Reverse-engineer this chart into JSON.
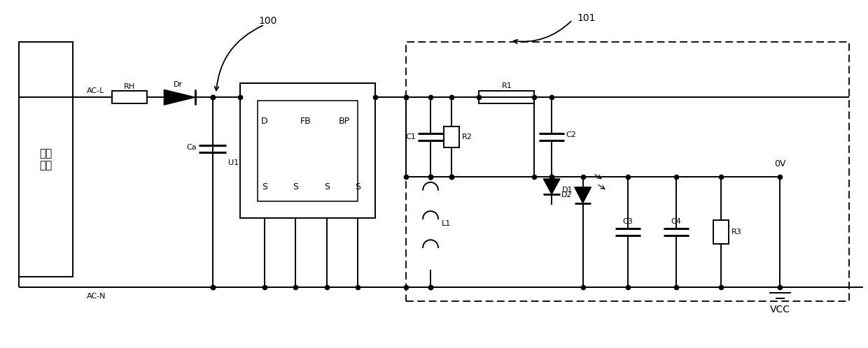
{
  "fig_width": 12.4,
  "fig_height": 4.98,
  "dpi": 100,
  "lc": "#000000",
  "lw": 1.4,
  "ds": 4.5,
  "label_supply": "供电\n系统",
  "label_ACL": "AC-L",
  "label_ACN": "AC-N",
  "label_RH": "RH",
  "label_Dr": "Dr",
  "label_Ca": "Ca",
  "label_U1": "U1",
  "label_D": "D",
  "label_FB": "FB",
  "label_BP": "BP",
  "label_C1": "C1",
  "label_R2": "R2",
  "label_L1": "L1",
  "label_R1": "R1",
  "label_C2": "C2",
  "label_D1": "D1",
  "label_D2": "D2",
  "label_C3": "C3",
  "label_C4": "C4",
  "label_R3": "R3",
  "label_0V": "0V",
  "label_VCC": "VCC",
  "label_100": "100",
  "label_101": "101"
}
